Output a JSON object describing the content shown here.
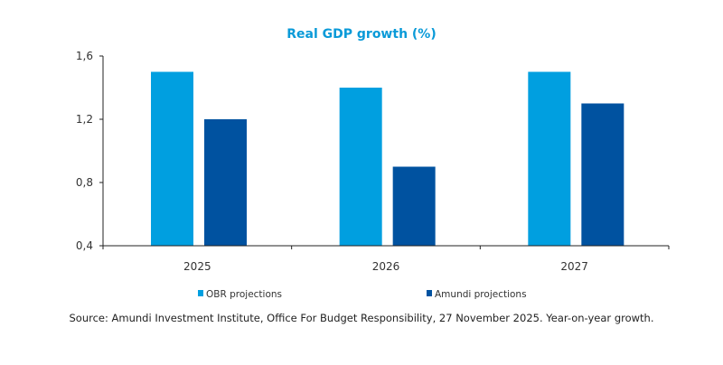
{
  "chart_data": {
    "type": "bar",
    "title": "Real GDP growth (%)",
    "categories": [
      "2025",
      "2026",
      "2027"
    ],
    "series": [
      {
        "name": "OBR projections",
        "values": [
          1.5,
          1.4,
          1.5
        ],
        "color": "#009fe0"
      },
      {
        "name": "Amundi projections",
        "values": [
          1.2,
          0.9,
          1.3
        ],
        "color": "#0052a0"
      }
    ],
    "ylim": [
      0.4,
      1.6
    ],
    "yticks": [
      "0,4",
      "0,8",
      "1,2",
      "1,6"
    ],
    "ytick_values": [
      0.4,
      0.8,
      1.2,
      1.6
    ],
    "grid": false,
    "legend": "bottom",
    "xlabel": "",
    "ylabel": ""
  },
  "source": "Source: Amundi Investment Institute, Office For Budget Responsibility,  27 November 2025. Year-on-year growth."
}
